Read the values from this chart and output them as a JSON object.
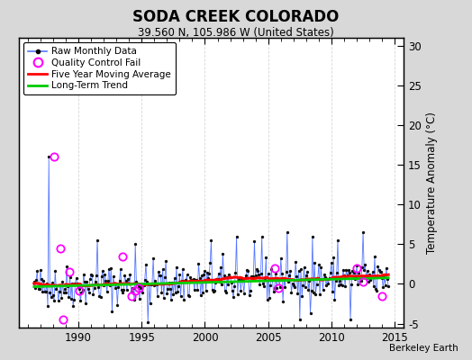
{
  "title": "SODA CREEK COLORADO",
  "subtitle": "39.560 N, 105.986 W (United States)",
  "ylabel_right": "Temperature Anomaly (°C)",
  "watermark": "Berkeley Earth",
  "ylim": [
    -5.5,
    31
  ],
  "xlim": [
    1985.3,
    2015.7
  ],
  "yticks_right": [
    -5,
    0,
    5,
    10,
    15,
    20,
    25,
    30
  ],
  "xticks": [
    1990,
    1995,
    2000,
    2005,
    2010,
    2015
  ],
  "background_color": "#d8d8d8",
  "plot_bg_color": "#ffffff",
  "raw_line_color": "#5577ff",
  "raw_dot_color": "#111111",
  "moving_avg_color": "#ff0000",
  "trend_color": "#00cc00",
  "qc_fail_color": "#ff00ff",
  "legend_labels": [
    "Raw Monthly Data",
    "Quality Control Fail",
    "Five Year Moving Average",
    "Long-Term Trend"
  ],
  "seed": 42,
  "n_months": 337,
  "start_year": 1986.5,
  "trend_slope": 0.04,
  "trend_intercept": -0.35
}
